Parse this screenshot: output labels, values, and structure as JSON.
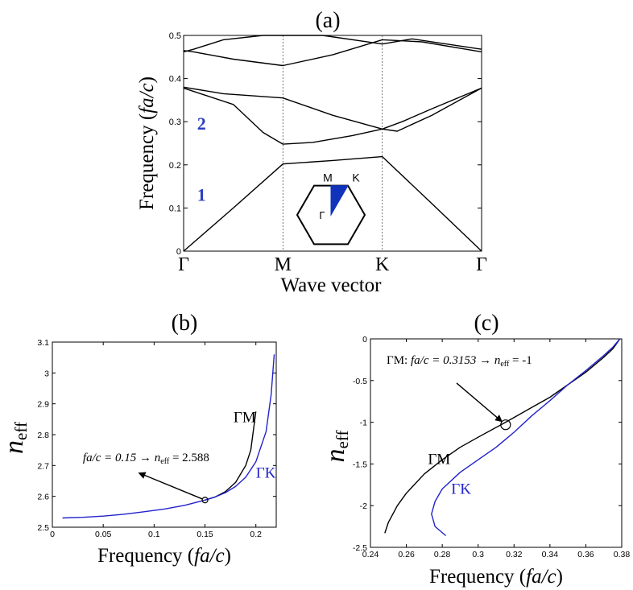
{
  "colors": {
    "black": "#000000",
    "blue": "#2222cc",
    "band_label": "#2b3fc0",
    "bz_fill": "#1133bb"
  },
  "chart_data": [
    {
      "id": "a",
      "type": "line",
      "panel_label": "(a)",
      "xlabel": "Wave vector",
      "ylabel": "Frequency (fa/c)",
      "ylabel_parts": {
        "pre": "Frequency (",
        "it": "fa/c",
        "post": ")"
      },
      "ylim": [
        0,
        0.5
      ],
      "yticks": [
        0,
        0.1,
        0.2,
        0.3,
        0.4,
        0.5
      ],
      "ytick_labels": [
        "0",
        "0.1",
        "0.2",
        "0.3",
        "0.4",
        "0.5"
      ],
      "xticks": [
        0,
        1,
        2,
        3
      ],
      "xtick_labels": [
        "Γ",
        "M",
        "K",
        "Γ"
      ],
      "grid": false,
      "band_labels": [
        {
          "text": "1",
          "x": 0.18,
          "y": 0.13
        },
        {
          "text": "2",
          "x": 0.18,
          "y": 0.295
        }
      ],
      "inset": {
        "labels": [
          "M",
          "K",
          "Γ"
        ]
      },
      "series": [
        {
          "color": "#000000",
          "x": [
            0,
            0.5,
            1,
            1.5,
            2,
            2.5,
            3
          ],
          "y": [
            0,
            0.1,
            0.202,
            0.21,
            0.219,
            0.11,
            0
          ]
        },
        {
          "color": "#000000",
          "x": [
            0,
            0.5,
            0.8,
            1,
            1.3,
            1.7,
            2,
            2.2,
            2.5,
            3
          ],
          "y": [
            0.378,
            0.34,
            0.275,
            0.248,
            0.252,
            0.268,
            0.283,
            0.3,
            0.33,
            0.378
          ]
        },
        {
          "color": "#000000",
          "x": [
            0,
            0.4,
            1,
            1.5,
            2,
            2.15,
            2.5,
            3
          ],
          "y": [
            0.38,
            0.365,
            0.355,
            0.315,
            0.283,
            0.278,
            0.315,
            0.378
          ]
        },
        {
          "color": "#000000",
          "x": [
            0,
            0.1,
            0.5,
            1,
            1.5,
            2,
            2.4,
            3
          ],
          "y": [
            0.465,
            0.462,
            0.445,
            0.43,
            0.455,
            0.49,
            0.485,
            0.462
          ]
        },
        {
          "color": "#000000",
          "x": [
            0,
            0.1,
            0.4,
            0.8,
            1,
            1.4,
            2,
            2.3,
            3
          ],
          "y": [
            0.462,
            0.468,
            0.49,
            0.5,
            0.5,
            0.5,
            0.48,
            0.492,
            0.468
          ]
        }
      ]
    },
    {
      "id": "b",
      "type": "line",
      "panel_label": "(b)",
      "xlabel": "Frequency (fa/c)",
      "xlabel_parts": {
        "pre": "Frequency (",
        "it": "fa/c",
        "post": ")"
      },
      "ylabel": "neff",
      "xlim": [
        0,
        0.22
      ],
      "ylim": [
        2.5,
        3.1
      ],
      "xticks": [
        0,
        0.05,
        0.1,
        0.15,
        0.2
      ],
      "xtick_labels": [
        "0",
        "0.05",
        "0.1",
        "0.15",
        "0.2"
      ],
      "yticks": [
        2.5,
        2.6,
        2.7,
        2.8,
        2.9,
        3,
        3.1
      ],
      "ytick_labels": [
        "2.5",
        "2.6",
        "2.7",
        "2.8",
        "2.9",
        "3",
        "3.1"
      ],
      "grid": false,
      "series": [
        {
          "name": "ΓM",
          "color": "#000000",
          "x": [
            0.15,
            0.16,
            0.17,
            0.18,
            0.19,
            0.195,
            0.2
          ],
          "y": [
            2.588,
            2.598,
            2.615,
            2.645,
            2.7,
            2.75,
            2.875
          ]
        },
        {
          "name": "ΓK",
          "color": "#2222cc",
          "x": [
            0.01,
            0.03,
            0.05,
            0.07,
            0.09,
            0.11,
            0.13,
            0.15,
            0.16,
            0.17,
            0.18,
            0.19,
            0.2,
            0.21,
            0.215,
            0.218
          ],
          "y": [
            2.53,
            2.532,
            2.536,
            2.542,
            2.55,
            2.559,
            2.571,
            2.588,
            2.598,
            2.612,
            2.632,
            2.662,
            2.712,
            2.81,
            2.93,
            3.06
          ]
        }
      ],
      "series_labels": [
        {
          "text": "ΓM",
          "color": "#000000",
          "x": 0.178,
          "y": 2.84
        },
        {
          "text": "ΓK",
          "color": "#2222cc",
          "x": 0.2,
          "y": 2.66
        }
      ],
      "marker": {
        "x": 0.15,
        "y": 2.588
      },
      "annotation": {
        "pre": "fa/c = 0.15 ",
        "arrow": "→",
        "n": "n",
        "sub": "eff",
        "post": " = 2.588",
        "tx": 0.03,
        "ty": 2.714,
        "ax": 0.085,
        "ay": 2.676
      }
    },
    {
      "id": "c",
      "type": "line",
      "panel_label": "(c)",
      "xlabel": "Frequency (fa/c)",
      "xlabel_parts": {
        "pre": "Frequency (",
        "it": "fa/c",
        "post": ")"
      },
      "ylabel": "neff",
      "xlim": [
        0.24,
        0.38
      ],
      "ylim": [
        -2.5,
        0
      ],
      "xticks": [
        0.24,
        0.26,
        0.28,
        0.3,
        0.32,
        0.34,
        0.36,
        0.38
      ],
      "xtick_labels": [
        "0.24",
        "0.26",
        "0.28",
        "0.3",
        "0.32",
        "0.34",
        "0.36",
        "0.38"
      ],
      "yticks": [
        -2.5,
        -2,
        -1.5,
        -1,
        -0.5,
        0
      ],
      "ytick_labels": [
        "-2.5",
        "-2",
        "-1.5",
        "-1",
        "-0.5",
        "0"
      ],
      "grid": false,
      "series": [
        {
          "name": "ΓM",
          "color": "#000000",
          "x": [
            0.248,
            0.25,
            0.255,
            0.26,
            0.27,
            0.28,
            0.29,
            0.3,
            0.3153,
            0.33,
            0.34,
            0.35,
            0.36,
            0.37,
            0.375,
            0.379
          ],
          "y": [
            -2.33,
            -2.2,
            -2.0,
            -1.85,
            -1.62,
            -1.45,
            -1.3,
            -1.18,
            -1.0,
            -0.82,
            -0.7,
            -0.55,
            -0.4,
            -0.22,
            -0.12,
            0
          ]
        },
        {
          "name": "ΓK",
          "color": "#2222cc",
          "x": [
            0.282,
            0.276,
            0.274,
            0.276,
            0.28,
            0.29,
            0.3,
            0.31,
            0.32,
            0.33,
            0.34,
            0.35,
            0.36,
            0.37,
            0.375,
            0.379
          ],
          "y": [
            -2.36,
            -2.25,
            -2.1,
            -1.95,
            -1.8,
            -1.6,
            -1.45,
            -1.3,
            -1.12,
            -0.92,
            -0.74,
            -0.55,
            -0.38,
            -0.2,
            -0.1,
            0
          ]
        }
      ],
      "series_labels": [
        {
          "text": "ΓM",
          "color": "#000000",
          "x": 0.272,
          "y": -1.5
        },
        {
          "text": "ΓK",
          "color": "#2222cc",
          "x": 0.285,
          "y": -1.86
        }
      ],
      "marker": {
        "x": 0.3153,
        "y": -1.03
      },
      "annotation": {
        "prefix": "ΓM: ",
        "pre": "fa/c = 0.3153 ",
        "arrow": "→",
        "n": "n",
        "sub": "eff",
        "post": " = -1",
        "tx": 0.249,
        "ty": -0.3,
        "ax": 0.288,
        "ay": -0.53
      }
    }
  ]
}
